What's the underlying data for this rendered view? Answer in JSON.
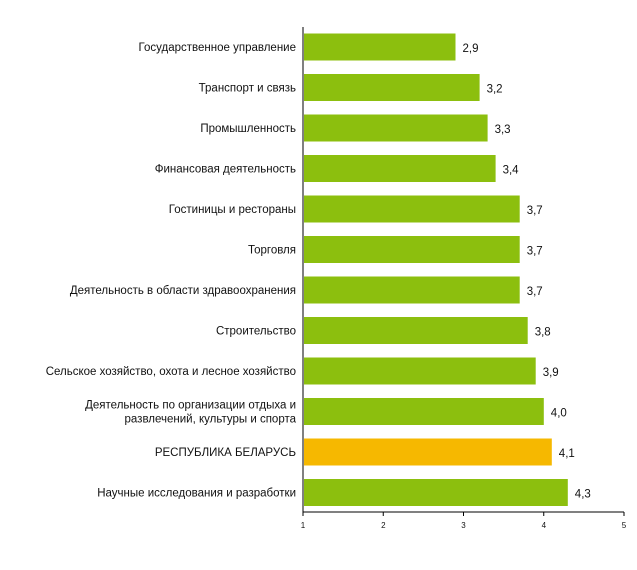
{
  "chart_data": {
    "type": "bar",
    "orientation": "horizontal",
    "title": "",
    "xlabel": "",
    "ylabel": "",
    "xlim": [
      1,
      5
    ],
    "xticks": [
      1,
      2,
      3,
      4,
      5
    ],
    "xtick_labels": [
      "1",
      "2",
      "3",
      "4",
      "5"
    ],
    "grid": false,
    "legend": "none",
    "colors": {
      "bar": "#8CBF0E",
      "highlight": "#F6B800",
      "axis": "#000000",
      "text": "#111111"
    },
    "categories": [
      [
        "Государственное управление"
      ],
      [
        "Транспорт и связь"
      ],
      [
        "Промышленность"
      ],
      [
        "Финансовая деятельность"
      ],
      [
        "Гостиницы и рестораны"
      ],
      [
        "Торговля"
      ],
      [
        "Деятельность в области здравоохранения"
      ],
      [
        "Строительство"
      ],
      [
        "Сельское хозяйство, охота и лесное хозяйство"
      ],
      [
        "Деятельность по организации отдыха и",
        "развлечений, культуры и спорта"
      ],
      [
        "РЕСПУБЛИКА БЕЛАРУСЬ"
      ],
      [
        "Научные исследования и разработки"
      ]
    ],
    "values": [
      2.9,
      3.2,
      3.3,
      3.4,
      3.7,
      3.7,
      3.7,
      3.8,
      3.9,
      4.0,
      4.1,
      4.3
    ],
    "value_labels": [
      "2,9",
      "3,2",
      "3,3",
      "3,4",
      "3,7",
      "3,7",
      "3,7",
      "3,8",
      "3,9",
      "4,0",
      "4,1",
      "4,3"
    ],
    "highlight_index": 10
  }
}
